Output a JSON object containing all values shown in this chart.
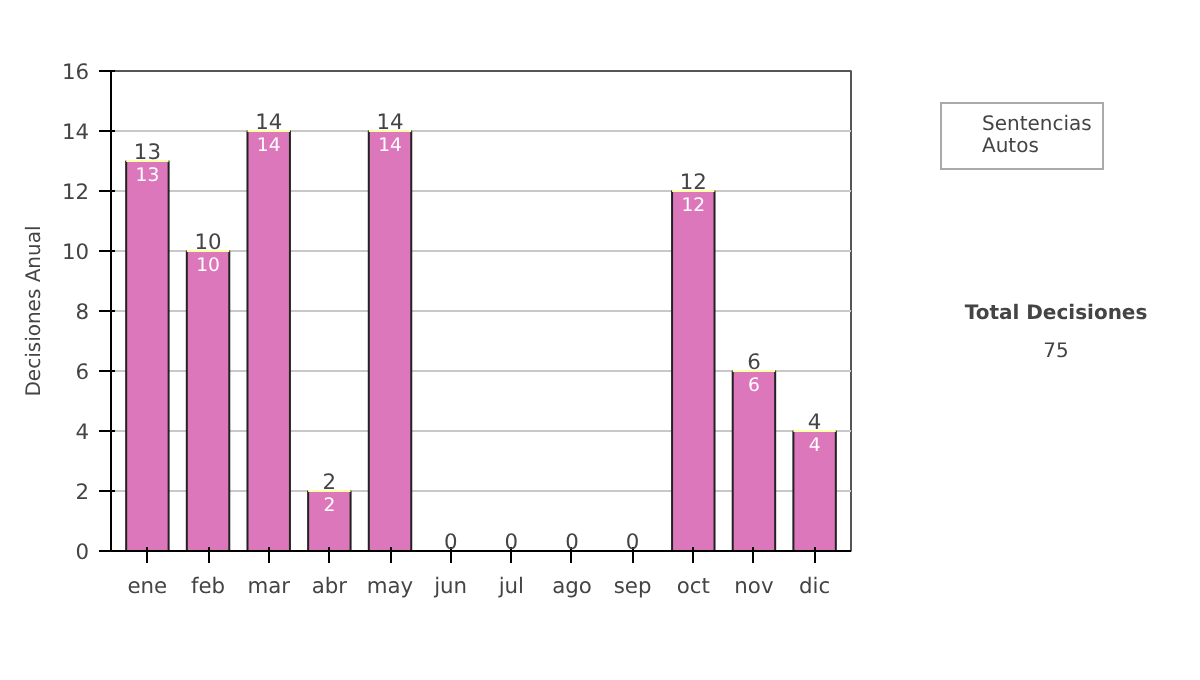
{
  "chart_data": {
    "type": "bar",
    "ylabel": "Decisiones Anual",
    "categories": [
      "ene",
      "feb",
      "mar",
      "abr",
      "may",
      "jun",
      "jul",
      "ago",
      "sep",
      "oct",
      "nov",
      "dic"
    ],
    "stacked": true,
    "series": [
      {
        "name": "Sentencias",
        "color": "#dd77bb",
        "values": [
          13,
          10,
          14,
          2,
          14,
          0,
          0,
          0,
          0,
          12,
          6,
          4
        ],
        "value_labels": [
          "13",
          "10",
          "14",
          "2",
          "14",
          null,
          null,
          null,
          null,
          "12",
          "6",
          "4"
        ]
      },
      {
        "name": "Autos",
        "color": "#ffffaa",
        "values": [
          0,
          0,
          0,
          0,
          0,
          0,
          0,
          0,
          0,
          0,
          0,
          0
        ]
      }
    ],
    "totals": [
      "13",
      "10",
      "14",
      "2",
      "14",
      "0",
      "0",
      "0",
      "0",
      "12",
      "6",
      "4"
    ],
    "ylim": [
      0,
      16
    ],
    "yticks": [
      0,
      2,
      4,
      6,
      8,
      10,
      12,
      14,
      16
    ],
    "grid": "y",
    "legend": "right",
    "annotations": [
      "Total Decisiones",
      "75"
    ]
  }
}
